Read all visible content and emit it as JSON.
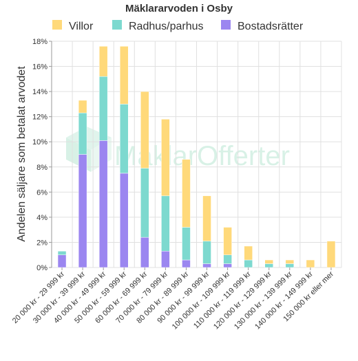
{
  "chart_data": {
    "type": "bar",
    "stacked": true,
    "title": "Mäklararvoden i Osby",
    "ylabel": "Andelen säljare som betalat arvodet",
    "xlabel": "",
    "ylim": [
      0,
      18
    ],
    "yticks": [
      "0%",
      "2%",
      "4%",
      "6%",
      "8%",
      "10%",
      "12%",
      "14%",
      "16%",
      "18%"
    ],
    "grid": true,
    "legend_position": "top",
    "watermark": "MäklarOfferter",
    "categories": [
      "20 000 kr - 29 999 kr",
      "30 000 kr - 39 999 kr",
      "40 000 kr - 49 999 kr",
      "50 000 kr - 59 999 kr",
      "60 000 kr - 69 999 kr",
      "70 000 kr - 79 999 kr",
      "80 000 kr - 89 999 kr",
      "90 000 kr - 99 999 kr",
      "100 000 kr - 109 999 kr",
      "110 000 kr - 119 999 kr",
      "120 000 kr - 129 999 kr",
      "130 000 kr - 139 999 kr",
      "140 000 kr - 149 999 kr",
      "150 000 kr eller mer"
    ],
    "series": [
      {
        "name": "Bostadsrätter",
        "color": "#9b86f0",
        "values": [
          1.0,
          9.0,
          10.1,
          7.5,
          2.4,
          1.3,
          0.6,
          0.3,
          0.3,
          0,
          0,
          0,
          0,
          0
        ]
      },
      {
        "name": "Radhus/parhus",
        "color": "#7dd9cf",
        "values": [
          0.3,
          3.3,
          5.1,
          5.5,
          5.5,
          4.4,
          2.6,
          1.8,
          0.7,
          0.6,
          0.3,
          0.3,
          0,
          0
        ]
      },
      {
        "name": "Villor",
        "color": "#ffd97a",
        "values": [
          0,
          1.0,
          2.4,
          4.6,
          6.1,
          6.1,
          5.4,
          3.6,
          2.2,
          1.1,
          0.3,
          0.3,
          0.6,
          2.1
        ]
      }
    ],
    "legend_order": [
      "Villor",
      "Radhus/parhus",
      "Bostadsrätter"
    ]
  }
}
